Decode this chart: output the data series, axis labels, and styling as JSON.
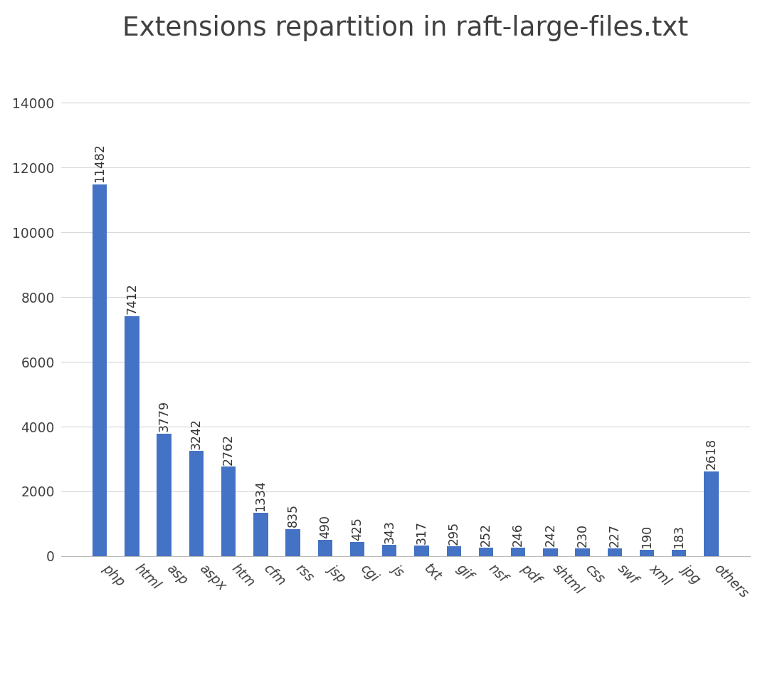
{
  "title": "Extensions repartition in raft-large-files.txt",
  "categories": [
    "php",
    "html",
    "asp",
    "aspx",
    "htm",
    "cfm",
    "rss",
    "jsp",
    "cgi",
    "js",
    "txt",
    "gif",
    "nsf",
    "pdf",
    "shtml",
    "css",
    "swf",
    "xml",
    "jpg",
    "others"
  ],
  "values": [
    11482,
    7412,
    3779,
    3242,
    2762,
    1334,
    835,
    490,
    425,
    343,
    317,
    295,
    252,
    246,
    242,
    230,
    227,
    190,
    183,
    2618
  ],
  "bar_color": "#4472C4",
  "background_color": "#ffffff",
  "ylim": [
    0,
    15500
  ],
  "yticks": [
    0,
    2000,
    4000,
    6000,
    8000,
    10000,
    12000,
    14000
  ],
  "title_fontsize": 28,
  "tick_fontsize": 14,
  "grid_color": "#d9d9d9",
  "value_label_fontsize": 13,
  "bar_width": 0.45,
  "fig_width": 11.2,
  "fig_height": 9.92,
  "fig_dpi": 96
}
